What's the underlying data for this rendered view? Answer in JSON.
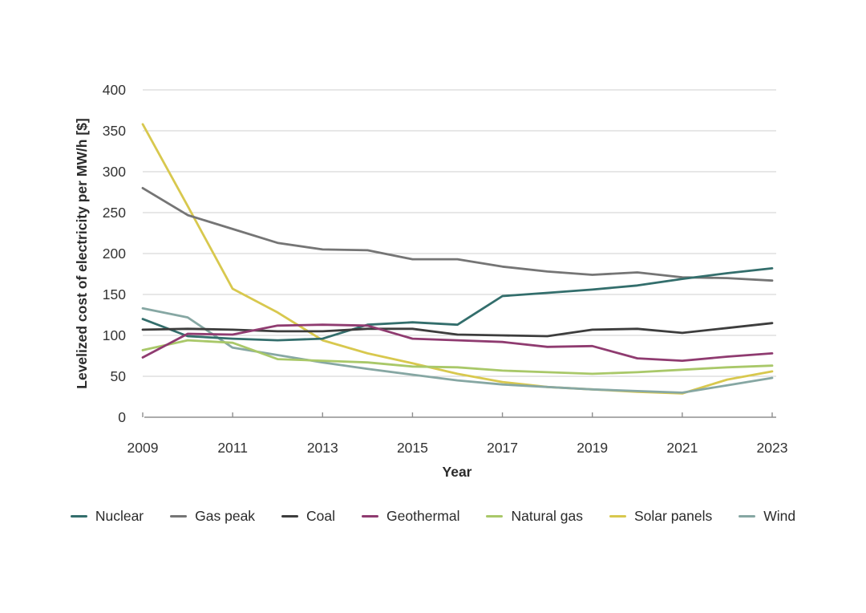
{
  "chart_data": {
    "type": "line",
    "title": "",
    "xlabel": "Year",
    "ylabel": "Levelized cost of electricity per MW/h [$]",
    "x": [
      2009,
      2010,
      2011,
      2012,
      2013,
      2014,
      2015,
      2016,
      2017,
      2018,
      2019,
      2020,
      2021,
      2022,
      2023
    ],
    "xticks": [
      2009,
      2011,
      2013,
      2015,
      2017,
      2019,
      2021,
      2023
    ],
    "yticks": [
      0,
      50,
      100,
      150,
      200,
      250,
      300,
      350,
      400
    ],
    "xlim": [
      2009,
      2023
    ],
    "ylim": [
      0,
      400
    ],
    "grid": true,
    "legend_position": "bottom",
    "series": [
      {
        "name": "Nuclear",
        "color": "#336e6c",
        "values": [
          120,
          99,
          96,
          94,
          96,
          113,
          116,
          113,
          148,
          152,
          156,
          161,
          169,
          176,
          182
        ]
      },
      {
        "name": "Gas peak",
        "color": "#757575",
        "values": [
          280,
          247,
          230,
          213,
          205,
          204,
          193,
          193,
          184,
          178,
          174,
          177,
          171,
          170,
          167
        ]
      },
      {
        "name": "Coal",
        "color": "#3d3d3d",
        "values": [
          107,
          108,
          107,
          105,
          105,
          108,
          108,
          101,
          100,
          99,
          107,
          108,
          103,
          109,
          115
        ]
      },
      {
        "name": "Geothermal",
        "color": "#8f3b70",
        "values": [
          73,
          102,
          101,
          112,
          113,
          112,
          96,
          94,
          92,
          86,
          87,
          72,
          69,
          74,
          78
        ]
      },
      {
        "name": "Natural gas",
        "color": "#a9c869",
        "values": [
          82,
          94,
          91,
          71,
          69,
          67,
          62,
          61,
          57,
          55,
          53,
          55,
          58,
          61,
          63
        ]
      },
      {
        "name": "Solar panels",
        "color": "#d8c84e",
        "values": [
          358,
          258,
          157,
          128,
          94,
          78,
          66,
          53,
          43,
          37,
          34,
          31,
          29,
          46,
          56
        ]
      },
      {
        "name": "Wind",
        "color": "#86a7a3",
        "values": [
          133,
          122,
          85,
          76,
          67,
          59,
          52,
          45,
          40,
          37,
          34,
          32,
          30,
          39,
          48
        ]
      }
    ],
    "style": {
      "grid_color": "#cfcfcf",
      "axis_color": "#8f8f8f",
      "line_width": 2.8
    }
  }
}
